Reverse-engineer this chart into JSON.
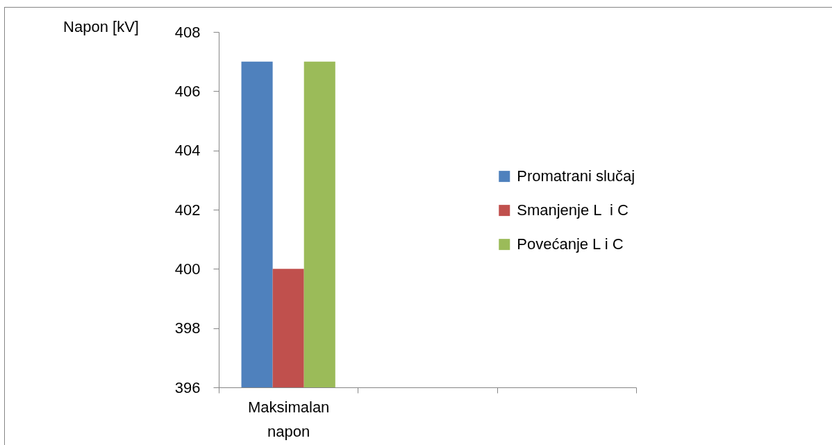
{
  "chart_data": {
    "type": "bar",
    "ylabel": "Napon [kV]",
    "categories": [
      "Maksimalan napon",
      null,
      null
    ],
    "series": [
      {
        "name": "Promatrani slučaj",
        "color": "#4f81bd",
        "values": [
          407,
          null,
          null
        ]
      },
      {
        "name": "Smanjenje L  i C",
        "color": "#c0504d",
        "values": [
          400,
          null,
          null
        ]
      },
      {
        "name": "Povećanje L i C",
        "color": "#9bbb59",
        "values": [
          407,
          null,
          null
        ]
      }
    ],
    "ylim": [
      396,
      408
    ],
    "yticks": [
      396,
      398,
      400,
      402,
      404,
      406,
      408
    ],
    "grid": false,
    "legend": "right"
  }
}
